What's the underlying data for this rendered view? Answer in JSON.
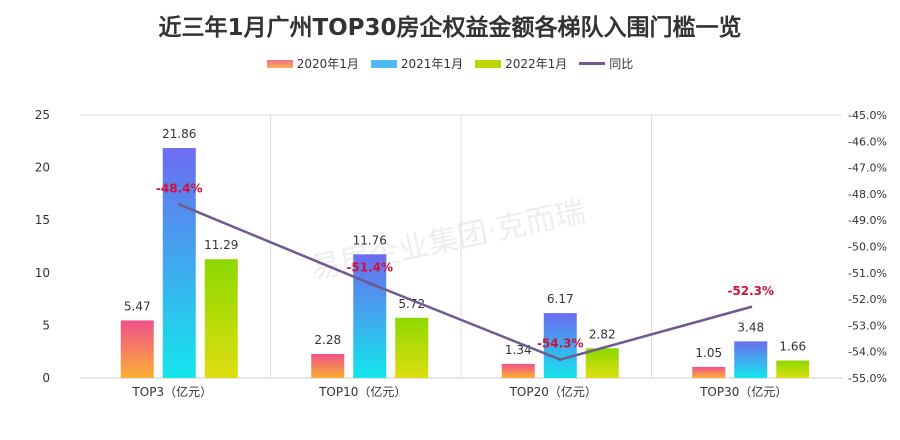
{
  "chart_data": {
    "type": "bar",
    "title": "近三年1月广州TOP30房企权益金额各梯队入围门槛一览",
    "categories": [
      "TOP3（亿元）",
      "TOP10（亿元）",
      "TOP20（亿元）",
      "TOP30（亿元）"
    ],
    "series": [
      {
        "name": "2020年1月",
        "type": "bar",
        "values": [
          5.47,
          2.28,
          1.34,
          1.05
        ],
        "colors": [
          "#f0508a",
          "#fbb034"
        ]
      },
      {
        "name": "2021年1月",
        "type": "bar",
        "values": [
          21.86,
          11.76,
          6.17,
          3.48
        ],
        "colors": [
          "#6b6cf0",
          "#14e6ec"
        ]
      },
      {
        "name": "2022年1月",
        "type": "bar",
        "values": [
          11.29,
          5.72,
          2.82,
          1.66
        ],
        "colors": [
          "#8cd800",
          "#dede10"
        ]
      },
      {
        "name": "同比",
        "type": "line",
        "axis": "right",
        "values": [
          -48.4,
          -51.4,
          -54.3,
          -52.3
        ],
        "labels": [
          "-48.4%",
          "-51.4%",
          "-54.3%",
          "-52.3%"
        ],
        "color": "#6e5a8e"
      }
    ],
    "ylim": [
      0,
      25
    ],
    "yticks": [
      0,
      5,
      10,
      15,
      20,
      25
    ],
    "y2lim": [
      -55,
      -45
    ],
    "y2ticks": [
      "-45.0%",
      "-46.0%",
      "-47.0%",
      "-48.0%",
      "-49.0%",
      "-50.0%",
      "-51.0%",
      "-52.0%",
      "-53.0%",
      "-54.0%",
      "-55.0%"
    ],
    "legend": "top",
    "grid": "vertical category separators",
    "watermark": "易居企业集团·克而瑞"
  }
}
